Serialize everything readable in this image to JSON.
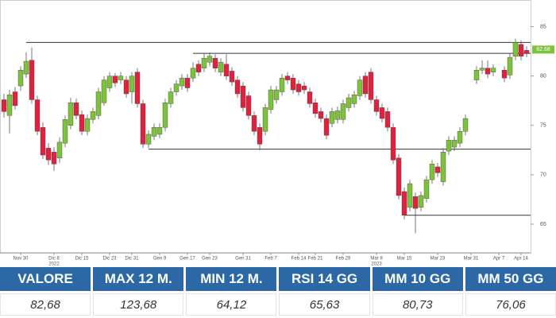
{
  "chart_data": {
    "type": "candlestick",
    "up_color": "#7cc23a",
    "down_color": "#e0223f",
    "level_color": "#333333",
    "last_color": "#7cc23a",
    "ylim": [
      62.1,
      87.7
    ],
    "yticks": [
      65,
      70,
      75,
      80,
      85
    ],
    "categories": [
      null,
      null,
      null,
      "Nov 30",
      null,
      null,
      null,
      null,
      null,
      "Dic 8",
      null,
      null,
      null,
      null,
      "Dic 15",
      null,
      null,
      null,
      null,
      "Dic 23",
      null,
      null,
      null,
      "Dic 31",
      null,
      null,
      null,
      null,
      "Gen 9",
      null,
      null,
      null,
      null,
      "Gen 17",
      null,
      null,
      null,
      "Gen 23",
      null,
      null,
      null,
      null,
      null,
      "Gen 31",
      null,
      null,
      null,
      null,
      "Feb 7",
      null,
      null,
      null,
      null,
      "Feb 14",
      null,
      null,
      "Feb 21",
      null,
      null,
      null,
      null,
      "Feb 28",
      null,
      null,
      null,
      null,
      null,
      "Mar 8",
      null,
      null,
      null,
      null,
      "Mar 15",
      null,
      null,
      null,
      null,
      null,
      "Mar 23",
      null,
      null,
      null,
      null,
      null,
      "Mar 31",
      null,
      null,
      null,
      null,
      "Apr 7",
      null,
      null,
      null,
      "Apr 14",
      null
    ],
    "annotations": [
      {
        "text": "2022",
        "index": 9
      },
      {
        "text": "2023",
        "index": 67
      }
    ],
    "ohlc": [
      [
        77.6,
        78.2,
        75.8,
        76.4
      ],
      [
        76,
        78.6,
        74.2,
        78.1
      ],
      [
        78.4,
        78.9,
        76.6,
        77
      ],
      [
        79,
        81,
        78.5,
        80.6
      ],
      [
        80.2,
        82.4,
        79.8,
        81.5
      ],
      [
        81.6,
        82.9,
        77.2,
        77.6
      ],
      [
        77.6,
        78,
        74,
        74.4
      ],
      [
        74.8,
        75.3,
        71.6,
        72
      ],
      [
        72.7,
        73.2,
        71,
        71.5
      ],
      [
        72.3,
        72.8,
        70.4,
        71.1
      ],
      [
        71.7,
        73.8,
        71.2,
        73.3
      ],
      [
        73.2,
        76,
        72.8,
        75.6
      ],
      [
        75,
        77.8,
        74.6,
        77.3
      ],
      [
        77.3,
        77.7,
        75.6,
        76
      ],
      [
        76.1,
        76.5,
        74,
        74.4
      ],
      [
        74.4,
        76.1,
        74,
        75.7
      ],
      [
        75.6,
        76.8,
        75.2,
        76.4
      ],
      [
        76,
        78.8,
        75.6,
        78.4
      ],
      [
        77.3,
        80,
        77,
        79.6
      ],
      [
        78.8,
        80.4,
        78.4,
        80
      ],
      [
        80,
        80.3,
        78.9,
        79.3
      ],
      [
        79.6,
        80.4,
        79.2,
        80
      ],
      [
        79.6,
        80,
        77.8,
        78.2
      ],
      [
        78.4,
        80.4,
        77.2,
        80
      ],
      [
        80.4,
        80.8,
        76.8,
        77.2
      ],
      [
        77.2,
        77.6,
        72.7,
        73.1
      ],
      [
        73.1,
        74.5,
        72.7,
        74.1
      ],
      [
        73.9,
        75.2,
        73.5,
        74.8
      ],
      [
        74.1,
        75.2,
        73.7,
        74.8
      ],
      [
        74.8,
        77.7,
        74.4,
        77.3
      ],
      [
        77.2,
        78.8,
        76.8,
        78.4
      ],
      [
        78.4,
        79.6,
        78,
        79.2
      ],
      [
        79,
        80.2,
        78.6,
        79.8
      ],
      [
        79.8,
        80.2,
        78.4,
        78.8
      ],
      [
        79.8,
        81.4,
        79.4,
        80.8
      ],
      [
        81.2,
        81.6,
        80,
        80.4
      ],
      [
        80.8,
        82.3,
        80.4,
        81.8
      ],
      [
        81.4,
        82.4,
        81,
        82
      ],
      [
        81.8,
        82.2,
        80.4,
        80.8
      ],
      [
        80.4,
        81.8,
        80,
        81.4
      ],
      [
        81.2,
        82.2,
        79.6,
        80
      ],
      [
        80.5,
        80.9,
        79,
        79.4
      ],
      [
        79.6,
        80,
        77.8,
        78.2
      ],
      [
        79,
        79.4,
        76.4,
        76.8
      ],
      [
        78,
        78.4,
        75.6,
        76
      ],
      [
        76,
        76.4,
        74,
        74.4
      ],
      [
        74.8,
        75.2,
        72.5,
        73.1
      ],
      [
        74.4,
        77.2,
        74,
        76.8
      ],
      [
        76.6,
        79,
        76.2,
        78.6
      ],
      [
        77.6,
        79,
        77.2,
        78.6
      ],
      [
        78.4,
        80.2,
        78,
        79.8
      ],
      [
        80,
        80.4,
        79.2,
        79.6
      ],
      [
        79.8,
        80.2,
        78.2,
        78.6
      ],
      [
        79.2,
        79.6,
        78,
        78.4
      ],
      [
        79,
        79.4,
        78.2,
        78.6
      ],
      [
        78.4,
        78.8,
        76.8,
        77.2
      ],
      [
        77.3,
        77.7,
        75.8,
        76.2
      ],
      [
        76.4,
        76.8,
        75.3,
        75.7
      ],
      [
        75.7,
        76.1,
        73.6,
        74
      ],
      [
        75.2,
        76.8,
        74.8,
        76.4
      ],
      [
        75.6,
        76.9,
        75.2,
        76.5
      ],
      [
        75.6,
        77.6,
        75.2,
        77.2
      ],
      [
        76.8,
        78.2,
        76.4,
        77.8
      ],
      [
        77.2,
        78.5,
        76.8,
        78.1
      ],
      [
        78,
        80,
        77.6,
        79.6
      ],
      [
        80,
        80.4,
        77.8,
        78.2
      ],
      [
        80.4,
        80.8,
        77.2,
        77.6
      ],
      [
        77.6,
        78,
        76,
        76.4
      ],
      [
        76.8,
        77.2,
        75.3,
        75.7
      ],
      [
        76.4,
        76.8,
        74.4,
        74.8
      ],
      [
        74.8,
        75.2,
        71.1,
        71.5
      ],
      [
        71.7,
        72.1,
        67.5,
        67.9
      ],
      [
        68.3,
        68.7,
        65.5,
        65.9
      ],
      [
        66.7,
        69.5,
        66.3,
        69.1
      ],
      [
        67.8,
        68.2,
        64.1,
        66.6
      ],
      [
        66.7,
        68.3,
        66.3,
        67.9
      ],
      [
        67.6,
        69.9,
        67.2,
        69.5
      ],
      [
        69.5,
        71.5,
        69.1,
        71.1
      ],
      [
        70.8,
        71.2,
        69.8,
        70.2
      ],
      [
        69.3,
        72.7,
        68.9,
        72.3
      ],
      [
        72.4,
        73.9,
        72,
        73.5
      ],
      [
        72.8,
        73.9,
        72.4,
        73.5
      ],
      [
        73.2,
        74.8,
        72.8,
        74.4
      ],
      [
        74.4,
        76.1,
        74,
        75.7
      ],
      null,
      [
        79.6,
        81,
        79.2,
        80.6
      ],
      [
        80.6,
        81.6,
        80.2,
        80.8
      ],
      [
        80.8,
        81.6,
        79.8,
        80.2
      ],
      [
        80.4,
        81.2,
        80,
        80.8
      ],
      null,
      [
        80.6,
        81,
        79.4,
        79.8
      ],
      [
        80.1,
        82.3,
        79.7,
        81.9
      ],
      [
        82,
        83.8,
        81.6,
        83.4
      ],
      [
        83.2,
        83.6,
        81.6,
        82
      ],
      [
        82.6,
        83,
        81.9,
        82.3
      ]
    ],
    "levels": [
      {
        "value": 83.4,
        "start": 4
      },
      {
        "value": 82.3,
        "start": 34
      },
      {
        "value": 72.6,
        "start": 26
      },
      {
        "value": 65.9,
        "start": 72
      }
    ],
    "last_value": 82.68
  },
  "table": {
    "headers": [
      "VALORE",
      "MAX 12 M.",
      "MIN 12 M.",
      "RSI 14 GG",
      "MM 10 GG",
      "MM 50 GG"
    ],
    "values": [
      "82,68",
      "123,68",
      "64,12",
      "65,63",
      "80,73",
      "76,06"
    ]
  }
}
